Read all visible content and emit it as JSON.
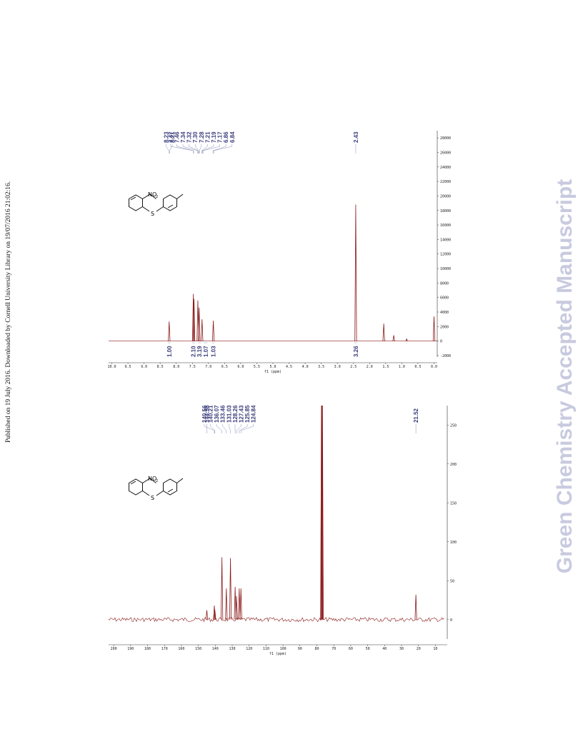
{
  "side_note": "Published on 19 July 2016. Downloaded by Cornell University Library on 19/07/2016 21:02:16.",
  "watermark": "Green Chemistry Accepted Manuscript",
  "chart_data": [
    {
      "type": "spectrum",
      "xlabel": "f1 (ppm)",
      "color": "#8b1a1a",
      "molecule": [
        "NO",
        "2",
        "S"
      ],
      "x": [
        8.22,
        7.47,
        7.33,
        7.2,
        6.85,
        2.43,
        7.45,
        7.29,
        1.56,
        1.25,
        0.85,
        0
      ],
      "values": [
        2700,
        6500,
        5600,
        3000,
        2800,
        18800,
        5800,
        4600,
        2400,
        800,
        300,
        3400
      ],
      "peak_labels": [
        8.23,
        8.21,
        7.47,
        7.46,
        7.34,
        7.32,
        {
          "value": 7.3,
          "label": "7.30"
        },
        7.28,
        7.21,
        7.19,
        7.17,
        6.86,
        6.84,
        2.43
      ],
      "integrals": [
        {
          "value": 1,
          "label": "1.00"
        },
        {
          "value": 2.1,
          "label": "2.10"
        },
        3.19,
        1.07,
        1.03,
        3.26
      ],
      "xlim": [
        10.1,
        -0.1
      ],
      "xticks": [
        {
          "value": 10,
          "label": "10.0"
        },
        9.5,
        {
          "value": 9,
          "label": "9.0"
        },
        8.5,
        {
          "value": 8,
          "label": "8.0"
        },
        7.5,
        {
          "value": 7,
          "label": "7.0"
        },
        6.5,
        {
          "value": 6,
          "label": "6.0"
        },
        5.5,
        {
          "value": 5,
          "label": "5.0"
        },
        4.5,
        {
          "value": 4,
          "label": "4.0"
        },
        3.5,
        {
          "value": 3,
          "label": "3.0"
        },
        2.5,
        {
          "value": 2,
          "label": "2.0"
        },
        1.5,
        {
          "value": 1,
          "label": "1.0"
        },
        0.5,
        {
          "value": 0,
          "label": "0.0"
        }
      ],
      "ylim": [
        -2200,
        29000
      ],
      "yticks": [
        28000,
        26000,
        24000,
        22000,
        20000,
        18000,
        16000,
        14000,
        12000,
        10000,
        8000,
        6000,
        4000,
        2000,
        0,
        -2000
      ]
    },
    {
      "type": "spectrum",
      "xlabel": "f1 (ppm)",
      "color": "#8b1a1a",
      "molecule": [
        "NO",
        "2",
        "S"
      ],
      "x": [
        144.98,
        140.56,
        140.21,
        136.07,
        133.46,
        131.03,
        128.26,
        127.43,
        125.85,
        124.84,
        77.3,
        77.0,
        76.7,
        21.52
      ],
      "values": [
        12,
        18,
        12,
        80,
        40,
        79,
        42,
        30,
        40,
        40,
        275,
        275,
        275,
        32
      ],
      "peak_labels": [
        144.98,
        140.56,
        140.21,
        136.07,
        133.46,
        131.03,
        128.26,
        127.43,
        125.85,
        124.84,
        21.52
      ],
      "xlim": [
        203,
        3
      ],
      "xticks": [
        200,
        190,
        180,
        170,
        160,
        150,
        140,
        130,
        120,
        110,
        100,
        90,
        80,
        70,
        60,
        50,
        40,
        30,
        20,
        10
      ],
      "ylim": [
        -25,
        275
      ],
      "yticks": [
        250,
        200,
        150,
        100,
        50,
        0
      ]
    }
  ]
}
